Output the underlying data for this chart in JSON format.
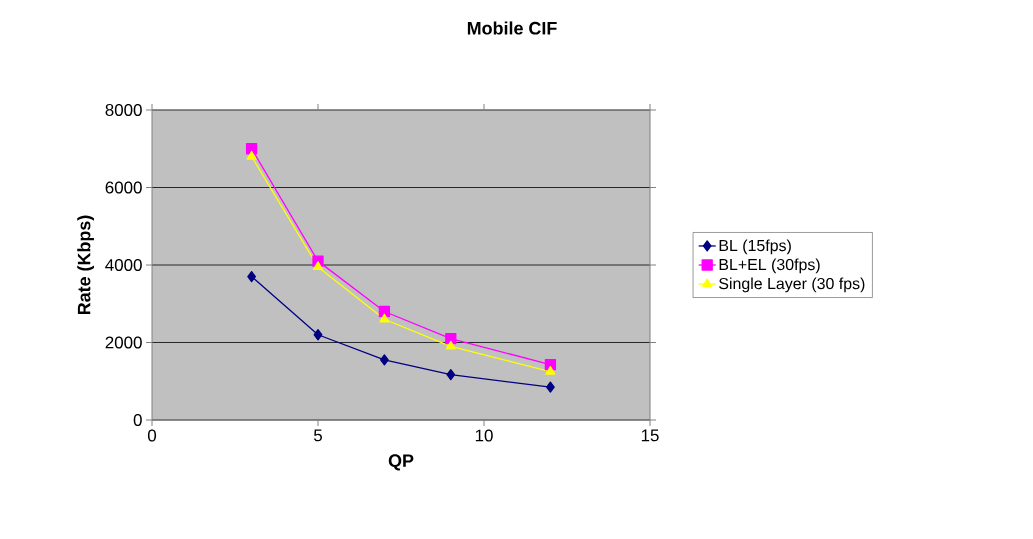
{
  "chart_data": {
    "type": "line",
    "title": "Mobile CIF",
    "xlabel": "QP",
    "ylabel": "Rate (Kbps)",
    "x": [
      3,
      5,
      7,
      9,
      12
    ],
    "series": [
      {
        "name": "BL (15fps)",
        "color": "#000080",
        "marker": "diamond",
        "values": [
          3700,
          2200,
          1550,
          1170,
          850
        ]
      },
      {
        "name": "BL+EL (30fps)",
        "color": "#ff00ff",
        "marker": "square",
        "values": [
          7000,
          4100,
          2800,
          2100,
          1430
        ]
      },
      {
        "name": "Single Layer (30 fps)",
        "color": "#ffff00",
        "marker": "triangle",
        "values": [
          6800,
          3950,
          2600,
          1900,
          1250
        ]
      }
    ],
    "xlim": [
      0,
      15
    ],
    "xticks": [
      0,
      5,
      10,
      15
    ],
    "ylim": [
      0,
      8000
    ],
    "yticks": [
      0,
      2000,
      4000,
      6000,
      8000
    ],
    "grid": "y",
    "legend": "right",
    "line_style": "solid"
  }
}
